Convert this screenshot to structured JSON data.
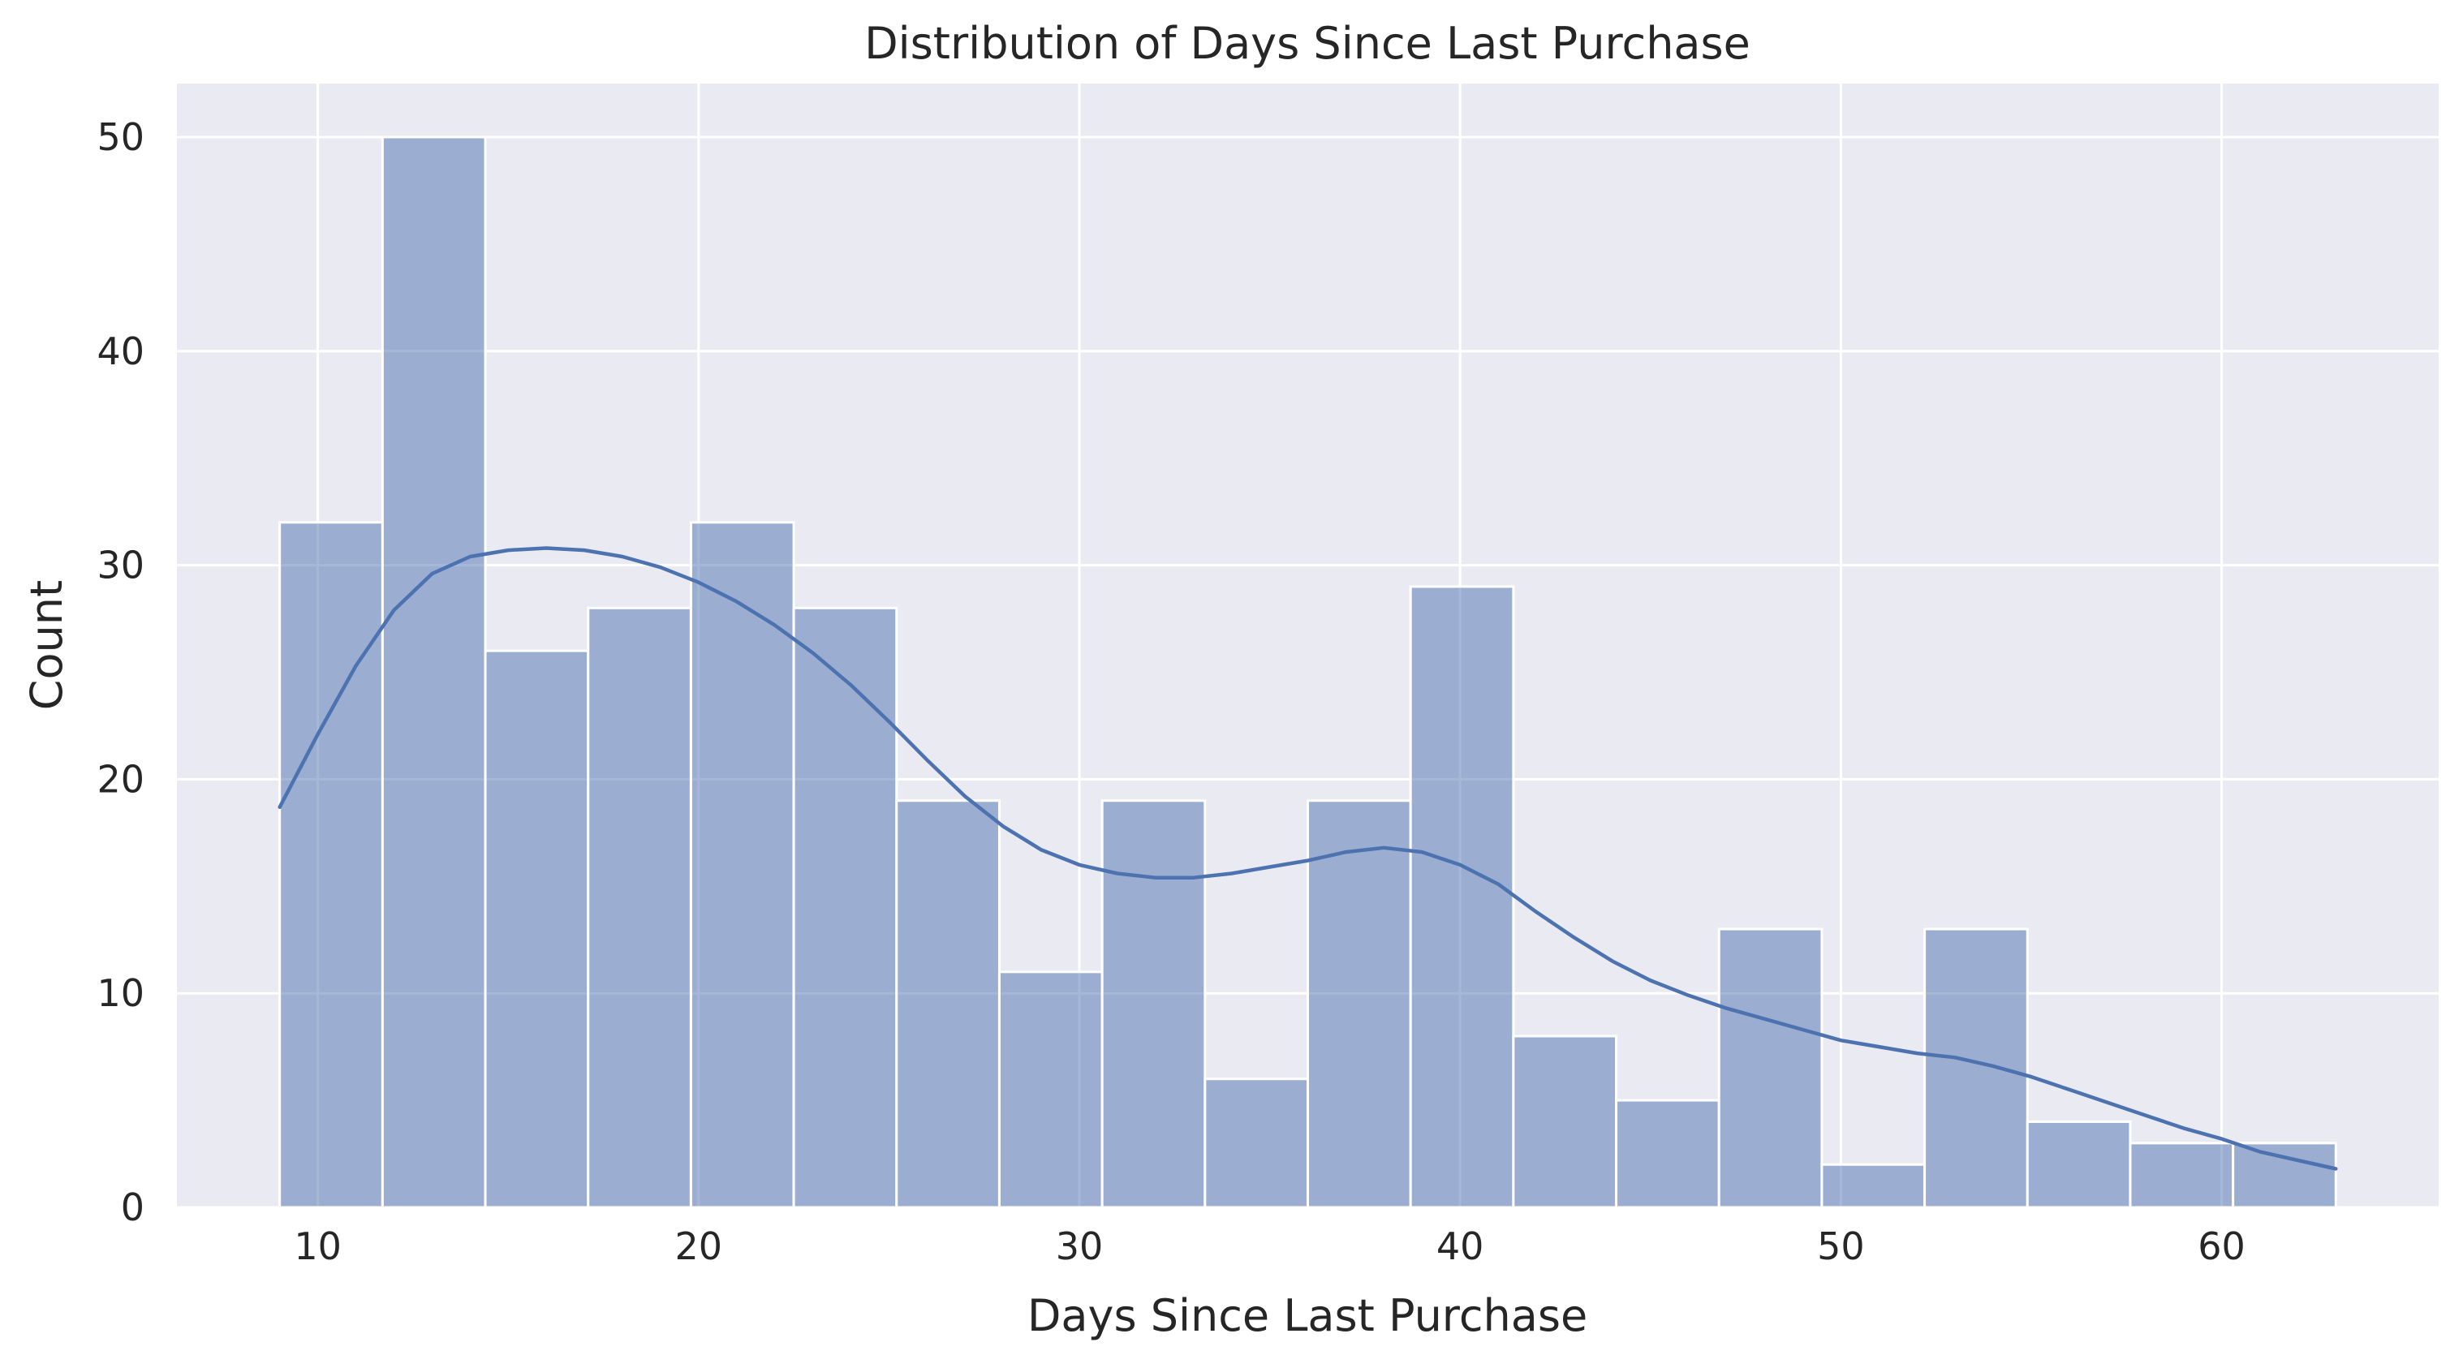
{
  "chart_data": {
    "type": "bar",
    "title": "Distribution of Days Since Last Purchase",
    "xlabel": "Days Since Last Purchase",
    "ylabel": "Count",
    "xlim": [
      6.3,
      65.7
    ],
    "ylim": [
      0,
      52.5
    ],
    "xticks": [
      10,
      20,
      30,
      40,
      50,
      60
    ],
    "yticks": [
      0,
      10,
      20,
      30,
      40,
      50
    ],
    "grid": true,
    "legend": "none",
    "bin_start": 9,
    "bin_width": 2.7,
    "values": [
      32,
      50,
      26,
      28,
      32,
      28,
      19,
      11,
      19,
      6,
      19,
      29,
      8,
      5,
      13,
      2,
      13,
      4,
      3,
      3
    ],
    "kde": {
      "x": [
        9,
        10,
        11,
        12,
        13,
        14,
        15,
        16,
        17,
        18,
        19,
        20,
        21,
        22,
        23,
        24,
        25,
        26,
        27,
        28,
        29,
        30,
        31,
        32,
        33,
        34,
        35,
        36,
        37,
        38,
        39,
        40,
        41,
        42,
        43,
        44,
        45,
        46,
        47,
        48,
        49,
        50,
        51,
        52,
        53,
        54,
        55,
        56,
        57,
        58,
        59,
        60,
        61,
        62,
        63
      ],
      "y": [
        18.7,
        22.1,
        25.3,
        27.9,
        29.6,
        30.4,
        30.7,
        30.8,
        30.7,
        30.4,
        29.9,
        29.2,
        28.3,
        27.2,
        25.9,
        24.4,
        22.7,
        20.9,
        19.2,
        17.8,
        16.7,
        16.0,
        15.6,
        15.4,
        15.4,
        15.6,
        15.9,
        16.2,
        16.6,
        16.8,
        16.6,
        16.0,
        15.1,
        13.8,
        12.6,
        11.5,
        10.6,
        9.9,
        9.3,
        8.8,
        8.3,
        7.8,
        7.5,
        7.2,
        7.0,
        6.6,
        6.1,
        5.5,
        4.9,
        4.3,
        3.7,
        3.2,
        2.6,
        2.2,
        1.8
      ]
    },
    "colors": {
      "bar": "#4c72b0",
      "line": "#4c72b0",
      "plot_background": "#eaeaf2"
    }
  }
}
